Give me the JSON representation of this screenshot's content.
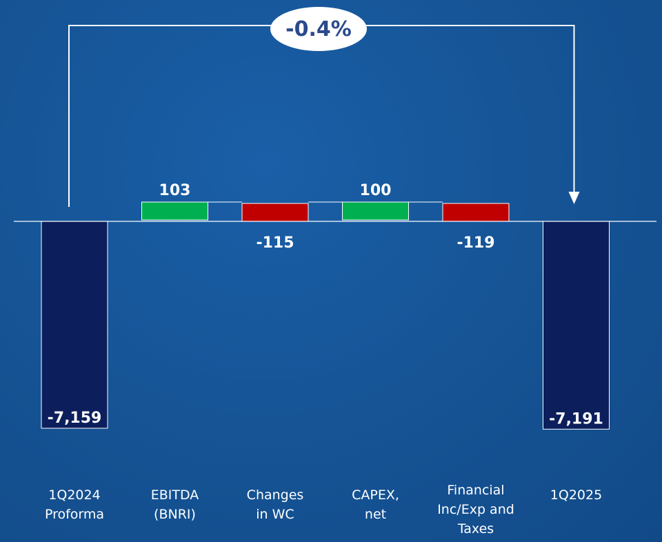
{
  "chart_data": {
    "type": "bar",
    "subtype": "waterfall",
    "categories": [
      [
        "1Q2024",
        "Proforma"
      ],
      [
        "EBITDA",
        "(BNRI)"
      ],
      [
        "Changes",
        "in WC"
      ],
      [
        "CAPEX,",
        "net"
      ],
      [
        "Financial",
        "Inc/Exp and",
        "Taxes"
      ],
      [
        "1Q2025"
      ]
    ],
    "values": [
      -7159,
      103,
      -115,
      100,
      -119,
      -7191
    ],
    "value_labels": [
      "-7,159",
      "103",
      "-115",
      "100",
      "-119",
      "-7,191"
    ],
    "bar_kinds": [
      "total",
      "increase",
      "decrease",
      "increase",
      "decrease",
      "total"
    ],
    "change_label": "-0.4%",
    "colors": {
      "total": "#0c1f5c",
      "increase": "#00b050",
      "decrease": "#c00000",
      "connector": "#ffffff",
      "baseline": "#ffffff"
    }
  }
}
